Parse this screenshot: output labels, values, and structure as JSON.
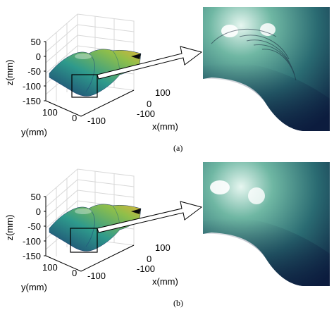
{
  "chart_data": [
    {
      "panel": "a",
      "type": "surface3d",
      "caption": "(a)",
      "zlabel": "z(mm)",
      "ylabel": "y(mm)",
      "xlabel": "x(mm)",
      "z_ticks": [
        "50",
        "0",
        "-50",
        "-100",
        "-150"
      ],
      "y_ticks": [
        "100",
        "0",
        "-100"
      ],
      "x_ticks": [
        "100",
        "0",
        "-100"
      ],
      "zlim": [
        -150,
        50
      ],
      "inset_surface": "with-ripple-artifacts"
    },
    {
      "panel": "b",
      "type": "surface3d",
      "caption": "(b)",
      "zlabel": "z(mm)",
      "ylabel": "y(mm)",
      "xlabel": "x(mm)",
      "z_ticks": [
        "50",
        "0",
        "-50",
        "-100",
        "-150"
      ],
      "y_ticks": [
        "100",
        "0",
        "-100"
      ],
      "x_ticks": [
        "100",
        "0",
        "-100"
      ],
      "zlim": [
        -150,
        50
      ],
      "inset_surface": "smooth"
    }
  ],
  "colors": {
    "surface_low": "#1a3a6e",
    "surface_mid": "#2e9a8c",
    "surface_high": "#d9b23a",
    "zoom_dark": "#0c1c3e",
    "zoom_light": "#e6f6f0",
    "axis": "#000000",
    "grid": "#d8d8d8"
  }
}
